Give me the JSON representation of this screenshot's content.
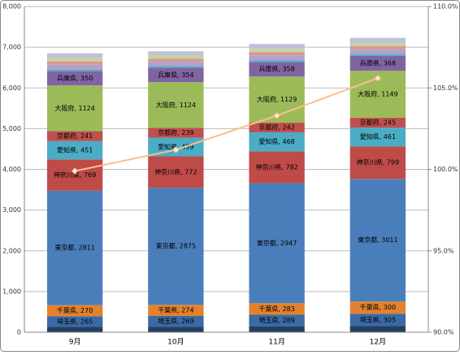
{
  "chart_data": {
    "type": "bar",
    "stacked": true,
    "categories": [
      "9月",
      "10月",
      "11月",
      "12月"
    ],
    "ylim": [
      0,
      8000
    ],
    "yticks": [
      0,
      {
        "value": 1000,
        "label": "1,000"
      },
      {
        "value": 2000,
        "label": "2,000"
      },
      {
        "value": 3000,
        "label": "3,000"
      },
      {
        "value": 4000,
        "label": "4,000"
      },
      {
        "value": 5000,
        "label": "5,000"
      },
      {
        "value": 6000,
        "label": "6,000"
      },
      {
        "value": 7000,
        "label": "7,000"
      },
      {
        "value": 8000,
        "label": "8,000"
      }
    ],
    "y2lim": [
      90,
      110
    ],
    "y2ticks": [
      {
        "value": 90,
        "label": "90.0%"
      },
      {
        "value": 95,
        "label": "95.0%"
      },
      {
        "value": 100,
        "label": "100.0%"
      },
      {
        "value": 105,
        "label": "105.0%"
      },
      {
        "value": 110,
        "label": "110.0%"
      }
    ],
    "grid": true,
    "series": [
      {
        "color": "#243f60",
        "values": [
          130,
          130,
          140,
          150
        ]
      },
      {
        "color": "#3b6aa4",
        "values": [
          265,
          269,
          289,
          305
        ],
        "value_labels": [
          "埼玉県, 265",
          "埼玉県, 269",
          "埼玉県, 289",
          "埼玉県, 305"
        ]
      },
      {
        "color": "#e2822e",
        "values": [
          270,
          274,
          283,
          300
        ],
        "value_labels": [
          "千葉県, 270",
          "千葉県, 274",
          "千葉県, 283",
          "千葉県, 300"
        ]
      },
      {
        "color": "#4a7ebb",
        "values": [
          2811,
          2875,
          2947,
          3011
        ],
        "value_labels": [
          "東京都, 2811",
          "東京都, 2875",
          "東京都, 2947",
          "東京都, 3011"
        ]
      },
      {
        "color": "#be4b48",
        "values": [
          769,
          772,
          782,
          799
        ],
        "value_labels": [
          "神奈川県, 769",
          "神奈川県, 772",
          "神奈川県, 782",
          "神奈川県, 799"
        ]
      },
      {
        "color": "#4bacc6",
        "values": [
          451,
          459,
          468,
          461
        ],
        "value_labels": [
          "愛知県, 451",
          "愛知県, 459",
          "愛知県, 468",
          "愛知県, 461"
        ]
      },
      {
        "color": "#c0504d",
        "values": [
          241,
          239,
          242,
          245
        ],
        "value_labels": [
          "京都府, 241",
          "京都府, 239",
          "京都府, 242",
          "京都府, 245"
        ]
      },
      {
        "color": "#9bbb59",
        "values": [
          1124,
          1124,
          1129,
          1149
        ],
        "value_labels": [
          "大阪府, 1124",
          "大阪府, 1124",
          "大阪府, 1129",
          "大阪府, 1149"
        ]
      },
      {
        "color": "#8064a2",
        "values": [
          350,
          354,
          358,
          368
        ],
        "value_labels": [
          "兵庫県, 350",
          "兵庫県, 354",
          "兵庫県, 358",
          "兵庫県, 368"
        ]
      },
      {
        "color": "#4bacc6",
        "values": [
          40,
          40,
          42,
          42
        ]
      },
      {
        "color": "#b3a2c7",
        "values": [
          120,
          110,
          120,
          120
        ]
      },
      {
        "color": "#d99694",
        "values": [
          80,
          74,
          80,
          80
        ]
      },
      {
        "color": "#c3d69b",
        "values": [
          80,
          80,
          80,
          80
        ]
      },
      {
        "color": "#c0c0d8",
        "values": [
          120,
          100,
          120,
          120
        ]
      },
      {
        "color": "#fac090",
        "axis": "y2",
        "values": [
          99.9,
          101.2,
          103.3,
          105.6
        ]
      }
    ]
  }
}
